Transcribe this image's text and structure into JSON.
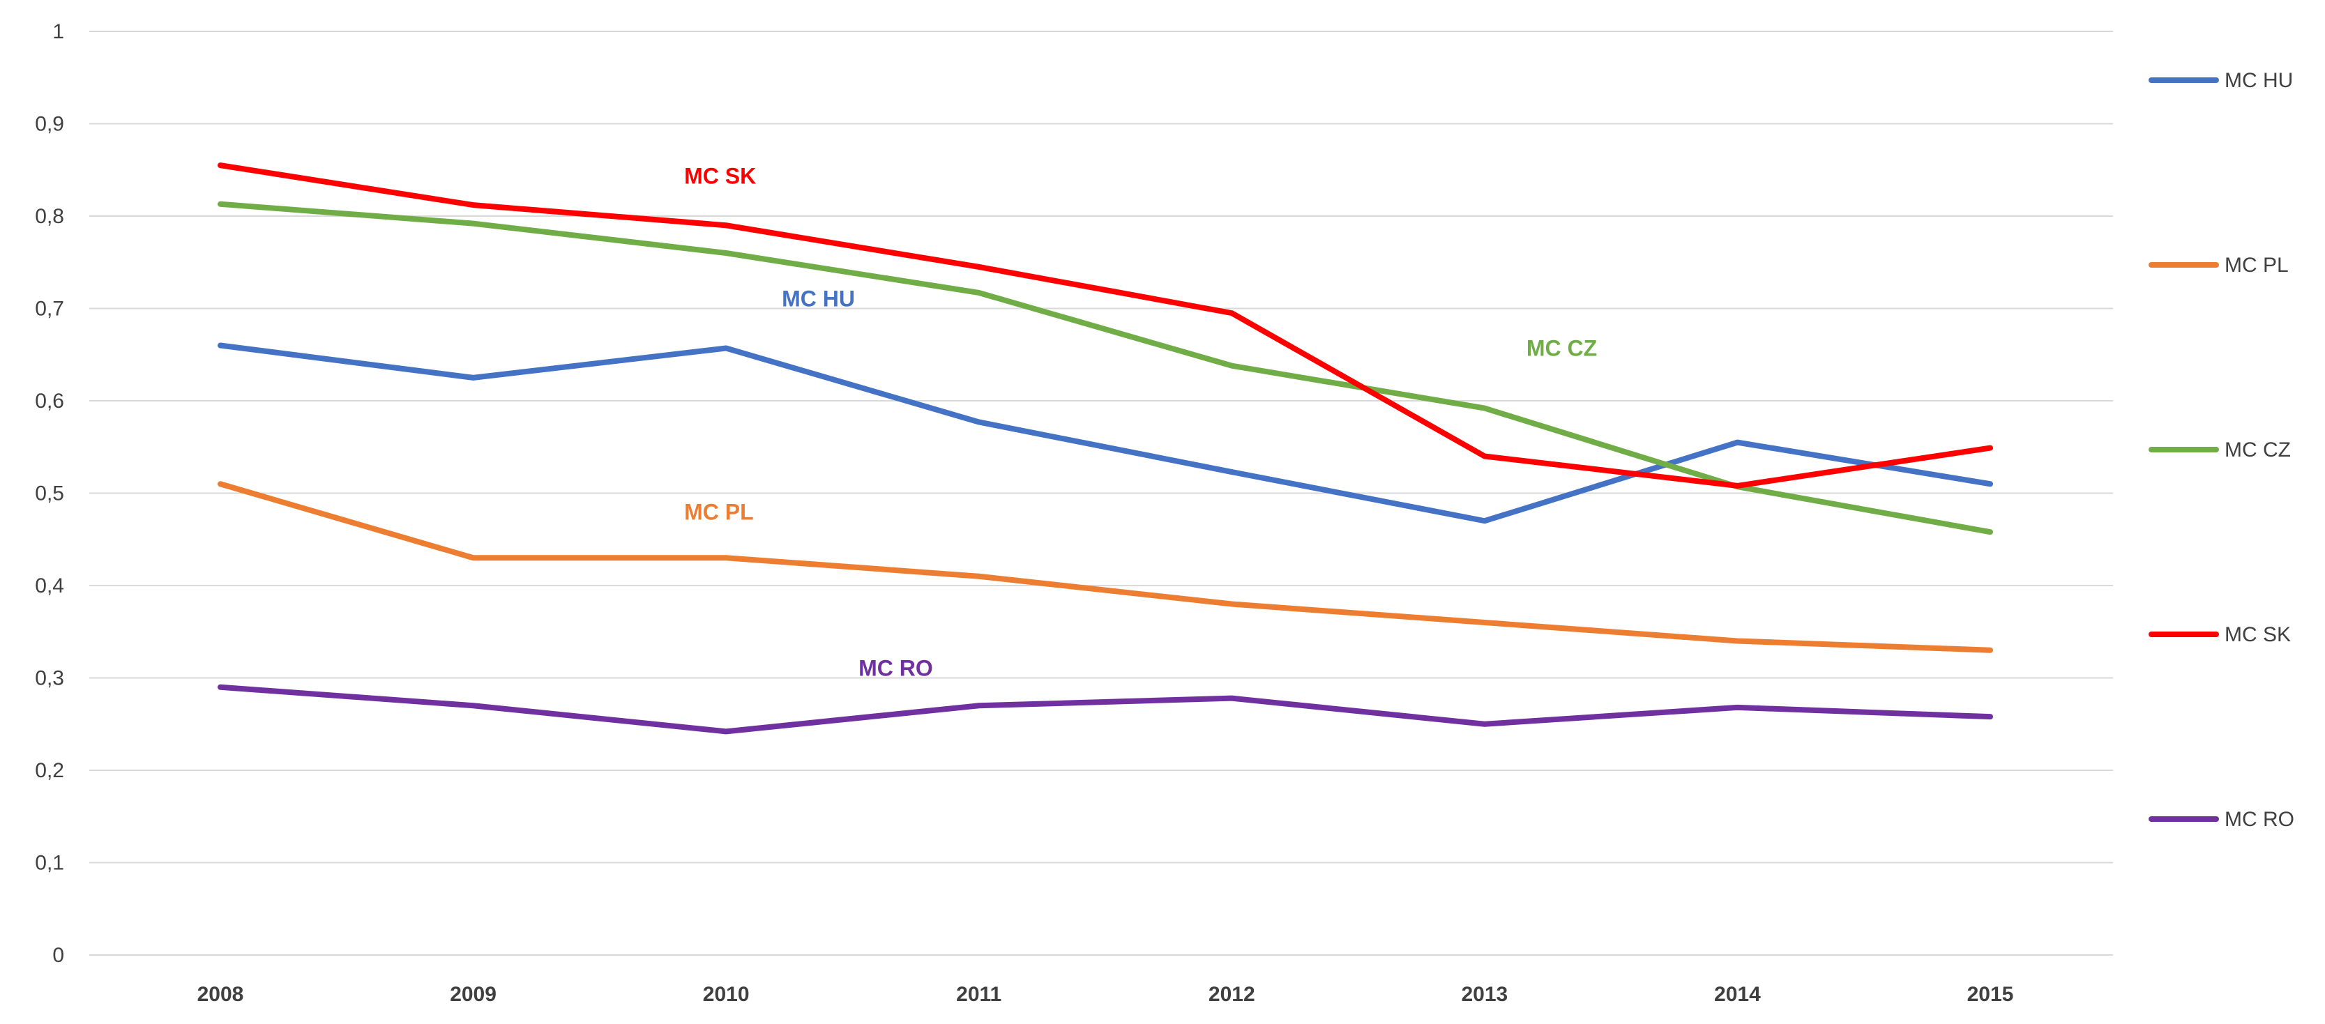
{
  "chart_data": {
    "type": "line",
    "title": "",
    "xlabel": "",
    "ylabel": "",
    "x": [
      "2008",
      "2009",
      "2010",
      "2011",
      "2012",
      "2013",
      "2014",
      "2015"
    ],
    "ylim": [
      0,
      1
    ],
    "yticks": [
      0,
      0.1,
      0.2,
      0.3,
      0.4,
      0.5,
      0.6,
      0.7,
      0.8,
      0.9,
      1
    ],
    "ytick_labels": [
      "0",
      "0,1",
      "0,2",
      "0,3",
      "0,4",
      "0,5",
      "0,6",
      "0,7",
      "0,8",
      "0,9",
      "1"
    ],
    "grid": true,
    "legend_position": "right",
    "series": [
      {
        "name": "MC HU",
        "color": "#4472C4",
        "values": [
          0.66,
          0.625,
          0.657,
          0.577,
          0.523,
          0.47,
          0.555,
          0.51
        ],
        "annotation": "MC HU",
        "annotation_year": "2010"
      },
      {
        "name": "MC PL",
        "color": "#ED7D31",
        "values": [
          0.51,
          0.43,
          0.43,
          0.41,
          0.38,
          0.36,
          0.34,
          0.33
        ],
        "annotation": "MC PL",
        "annotation_year": "2010"
      },
      {
        "name": "MC CZ",
        "color": "#70AD47",
        "values": [
          0.813,
          0.792,
          0.76,
          0.717,
          0.638,
          0.592,
          0.507,
          0.458
        ],
        "annotation": "MC CZ",
        "annotation_year": "2013"
      },
      {
        "name": "MC SK",
        "color": "#FF0000",
        "values": [
          0.855,
          0.812,
          0.79,
          0.745,
          0.695,
          0.54,
          0.508,
          0.549
        ],
        "annotation": "MC SK",
        "annotation_year": "2010"
      },
      {
        "name": "MC RO",
        "color": "#7030A0",
        "values": [
          0.29,
          0.27,
          0.242,
          0.27,
          0.278,
          0.25,
          0.268,
          0.258
        ],
        "annotation": "MC RO",
        "annotation_year": "2010"
      }
    ]
  }
}
